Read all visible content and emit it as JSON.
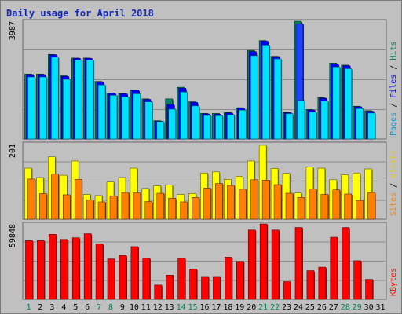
{
  "chart_data": {
    "type": "bar",
    "title": "Daily usage for April 2018",
    "categories": [
      "1",
      "2",
      "3",
      "4",
      "5",
      "6",
      "7",
      "8",
      "9",
      "10",
      "11",
      "12",
      "13",
      "14",
      "15",
      "16",
      "17",
      "18",
      "19",
      "20",
      "21",
      "22",
      "23",
      "24",
      "25",
      "26",
      "27",
      "28",
      "29",
      "30",
      "31"
    ],
    "weekend_days": [
      "1",
      "7",
      "8",
      "14",
      "15",
      "21",
      "22",
      "28",
      "29"
    ],
    "highlight_day": "24",
    "panels": [
      {
        "name": "pages-files-hits",
        "max_label": "3987",
        "ymax": 3987,
        "grid": true,
        "legend": [
          {
            "text": "Pages",
            "color": "#00a0d0"
          },
          {
            "text": " / ",
            "color": "#000000"
          },
          {
            "text": "Files",
            "color": "#0000ff"
          },
          {
            "text": " / ",
            "color": "#000000"
          },
          {
            "text": "Hits",
            "color": "#008060"
          }
        ],
        "series": [
          {
            "name": "Hits",
            "color": "#008060",
            "values": [
              2200,
              2200,
              2860,
              2140,
              2740,
              2740,
              1950,
              1560,
              1540,
              1660,
              1360,
              620,
              1360,
              1750,
              1260,
              870,
              870,
              900,
              1060,
              3000,
              3330,
              2800,
              900,
              3987,
              1000,
              1400,
              2570,
              2500,
              1110,
              960,
              0
            ]
          },
          {
            "name": "Files",
            "color": "#0000ff",
            "values": [
              2180,
              2180,
              2850,
              2120,
              2730,
              2730,
              1930,
              1550,
              1530,
              1650,
              1340,
              600,
              1170,
              1720,
              1240,
              850,
              840,
              880,
              1040,
              2960,
              3310,
              2790,
              890,
              3900,
              980,
              1380,
              2540,
              2480,
              1090,
              940,
              0
            ]
          },
          {
            "name": "Pages",
            "color": "#00e0ff",
            "values": [
              2100,
              2100,
              2770,
              2020,
              2670,
              2670,
              1830,
              1480,
              1430,
              1530,
              1260,
              590,
              1010,
              1590,
              1120,
              800,
              790,
              820,
              980,
              2820,
              3180,
              2710,
              860,
              1310,
              910,
              1290,
              2440,
              2380,
              1030,
              880,
              0
            ]
          }
        ]
      },
      {
        "name": "visits-sites",
        "max_label": "201",
        "ymax": 201,
        "grid": true,
        "legend": [
          {
            "text": "Sites",
            "color": "#ff8000"
          },
          {
            "text": " / ",
            "color": "#000000"
          },
          {
            "text": "Visits",
            "color": "#e8c800"
          }
        ],
        "series": [
          {
            "name": "Visits",
            "color": "#ffff00",
            "values": [
              136,
              111,
              166,
              117,
              155,
              66,
              63,
              99,
              111,
              136,
              82,
              89,
              91,
              66,
              68,
              123,
              126,
              106,
              114,
              155,
              197,
              135,
              122,
              70,
              139,
              136,
              105,
              118,
              123,
              134,
              0
            ]
          },
          {
            "name": "Sites",
            "color": "#ff8000",
            "values": [
              107,
              68,
              120,
              65,
              106,
              51,
              46,
              62,
              71,
              70,
              47,
              69,
              56,
              46,
              58,
              83,
              95,
              90,
              80,
              105,
              104,
              92,
              69,
              58,
              81,
              66,
              78,
              67,
              50,
              71,
              0
            ]
          }
        ]
      },
      {
        "name": "kbytes",
        "max_label": "59848",
        "ymax": 59848,
        "grid": true,
        "legend": [
          {
            "text": "KBytes",
            "color": "#ff0000"
          }
        ],
        "series": [
          {
            "name": "KBytes",
            "color": "#ff0000",
            "values": [
              46500,
              46500,
              51500,
              47500,
              48800,
              52000,
              44000,
              32000,
              34800,
              41800,
              32800,
              11300,
              19100,
              32800,
              24000,
              18100,
              18100,
              33400,
              30000,
              55000,
              59800,
              55000,
              14000,
              57000,
              22700,
              25500,
              49200,
              57000,
              30600,
              15800,
              0
            ]
          }
        ]
      }
    ]
  }
}
